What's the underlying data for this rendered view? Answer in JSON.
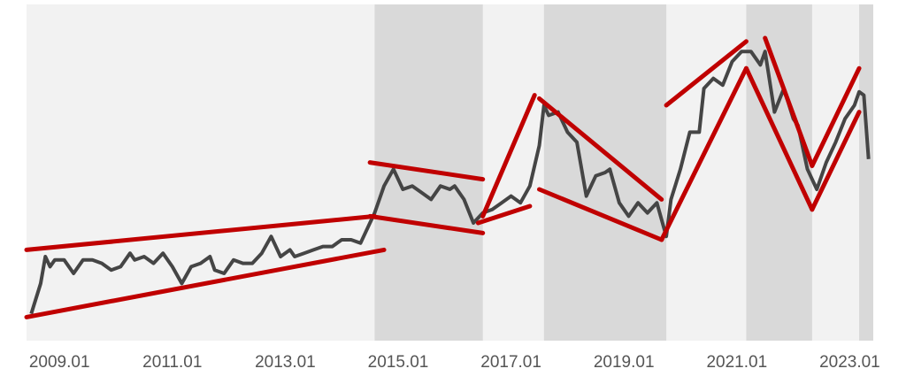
{
  "chart_data": {
    "type": "line",
    "x": [
      "2008.07",
      "2008.09",
      "2008.10",
      "2008.11",
      "2008.12",
      "2009.02",
      "2009.04",
      "2009.06",
      "2009.08",
      "2009.10",
      "2009.12",
      "2010.02",
      "2010.04",
      "2010.05",
      "2010.07",
      "2010.09",
      "2010.11",
      "2011.01",
      "2011.03",
      "2011.05",
      "2011.07",
      "2011.09",
      "2011.10",
      "2011.12",
      "2012.02",
      "2012.04",
      "2012.06",
      "2012.08",
      "2012.10",
      "2012.12",
      "2013.02",
      "2013.03",
      "2013.05",
      "2013.07",
      "2013.09",
      "2013.11",
      "2014.01",
      "2014.03",
      "2014.05",
      "2014.07",
      "2014.08",
      "2014.10",
      "2014.12",
      "2015.02",
      "2015.04",
      "2015.06",
      "2015.08",
      "2015.10",
      "2015.12",
      "2016.01",
      "2016.03",
      "2016.05",
      "2016.07",
      "2016.09",
      "2016.11",
      "2017.01",
      "2017.03",
      "2017.05",
      "2017.07",
      "2017.08",
      "2017.09",
      "2017.11",
      "2018.01",
      "2018.03",
      "2018.05",
      "2018.07",
      "2018.09",
      "2018.10",
      "2018.12",
      "2019.02",
      "2019.04",
      "2019.06",
      "2019.08",
      "2019.10",
      "2019.11",
      "2020.01",
      "2020.03",
      "2020.05",
      "2020.06",
      "2020.08",
      "2020.10",
      "2020.12",
      "2021.02",
      "2021.04",
      "2021.06",
      "2021.07",
      "2021.09",
      "2021.11",
      "2022.01",
      "2022.02",
      "2022.04",
      "2022.06",
      "2022.08",
      "2022.10",
      "2022.12",
      "2023.02",
      "2023.03",
      "2023.04",
      "2023.05"
    ],
    "series": [
      {
        "color": "#454545",
        "values": [
          8,
          17,
          25,
          22,
          24,
          24,
          20,
          24,
          24,
          23,
          21,
          22,
          26,
          24,
          25,
          23,
          26,
          22,
          17,
          22,
          23,
          25,
          21,
          20,
          24,
          23,
          23,
          26,
          31,
          25,
          27,
          25,
          26,
          27,
          28,
          28,
          30,
          30,
          29,
          35,
          38,
          46,
          51,
          45,
          46,
          44,
          42,
          46,
          45,
          46,
          42,
          35,
          38,
          39,
          41,
          43,
          41,
          46,
          58,
          70,
          67,
          68,
          62,
          59,
          43,
          49,
          50,
          51,
          41,
          37,
          41,
          38,
          41,
          31,
          42,
          51,
          62,
          62,
          75,
          78,
          76,
          83,
          86,
          86,
          82,
          86,
          68,
          75,
          66,
          64,
          51,
          45,
          53,
          59,
          66,
          70,
          74,
          73,
          54
        ]
      }
    ],
    "xlim": [
      "2008.06",
      "2023.06"
    ],
    "ylim": [
      0,
      100
    ],
    "xticks": [
      "2009.01",
      "2011.01",
      "2013.01",
      "2015.01",
      "2017.01",
      "2019.01",
      "2021.01",
      "2023.01"
    ],
    "background": "#f2f2f2",
    "shade_color": "#d9d9d9",
    "shaded_periods": [
      [
        "2014.08",
        "2016.07"
      ],
      [
        "2017.08",
        "2019.10"
      ],
      [
        "2021.03",
        "2022.05"
      ],
      [
        "2023.03",
        "2023.06"
      ]
    ],
    "trend_color": "#c00000",
    "trend_lines": [
      {
        "x": [
          "2008.06",
          "2014.08"
        ],
        "values": [
          27,
          37
        ]
      },
      {
        "x": [
          "2008.06",
          "2014.10"
        ],
        "values": [
          7,
          27
        ]
      },
      {
        "x": [
          "2014.07",
          "2016.07"
        ],
        "values": [
          53,
          48
        ]
      },
      {
        "x": [
          "2014.07",
          "2016.07"
        ],
        "values": [
          37,
          32
        ]
      },
      {
        "x": [
          "2016.06",
          "2017.05"
        ],
        "values": [
          35,
          40
        ]
      },
      {
        "x": [
          "2016.07",
          "2017.06"
        ],
        "values": [
          37,
          73
        ]
      },
      {
        "x": [
          "2017.07",
          "2019.09"
        ],
        "values": [
          72,
          42
        ]
      },
      {
        "x": [
          "2017.07",
          "2019.09"
        ],
        "values": [
          45,
          30
        ]
      },
      {
        "x": [
          "2019.09",
          "2021.03"
        ],
        "values": [
          30,
          81
        ]
      },
      {
        "x": [
          "2019.10",
          "2021.03"
        ],
        "values": [
          70,
          89
        ]
      },
      {
        "x": [
          "2021.03",
          "2022.05"
        ],
        "values": [
          81,
          39
        ]
      },
      {
        "x": [
          "2021.07",
          "2022.05"
        ],
        "values": [
          90,
          52
        ]
      },
      {
        "x": [
          "2022.05",
          "2023.03"
        ],
        "values": [
          39,
          68
        ]
      },
      {
        "x": [
          "2022.05",
          "2023.03"
        ],
        "values": [
          52,
          81
        ]
      }
    ]
  }
}
